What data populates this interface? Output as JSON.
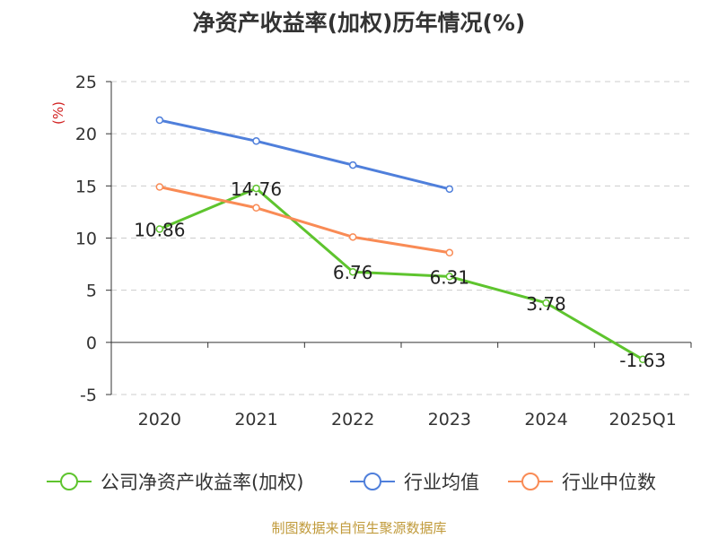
{
  "chart_data": {
    "type": "line",
    "title": "净资产收益率(加权)历年情况(%)",
    "ylabel": "(%)",
    "categories": [
      "2020",
      "2021",
      "2022",
      "2023",
      "2024",
      "2025Q1"
    ],
    "ylim": [
      -5,
      25
    ],
    "yticks": [
      25,
      20,
      15,
      10,
      5,
      0,
      -5
    ],
    "grid": true,
    "legend_position": "bottom",
    "series": [
      {
        "name": "公司净资产收益率(加权)",
        "color": "#5ec42e",
        "values": [
          10.86,
          14.76,
          6.76,
          6.31,
          3.78,
          -1.63
        ],
        "labels": [
          "10.86",
          "14.76",
          "6.76",
          "6.31",
          "3.78",
          "-1.63"
        ]
      },
      {
        "name": "行业均值",
        "color": "#4f7fdb",
        "values": [
          21.3,
          19.3,
          17.0,
          14.7,
          null,
          null
        ]
      },
      {
        "name": "行业中位数",
        "color": "#f98b55",
        "values": [
          14.9,
          12.9,
          10.1,
          8.6,
          null,
          null
        ]
      }
    ]
  },
  "footer": {
    "source": "制图数据来自恒生聚源数据库"
  }
}
